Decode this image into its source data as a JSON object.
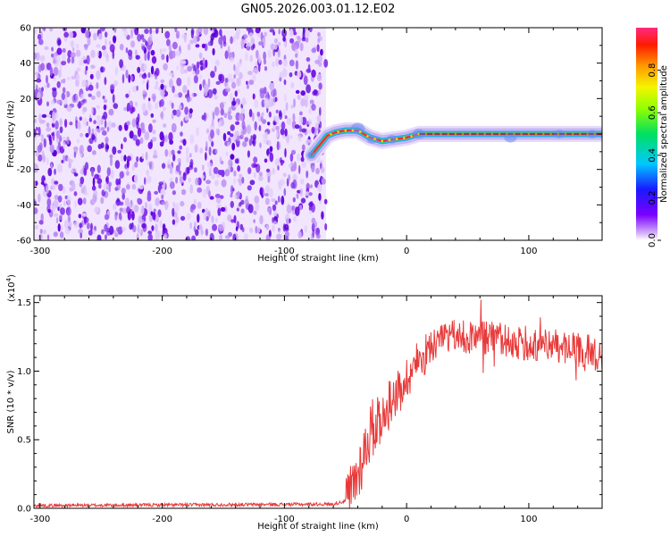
{
  "title": "GN05.2026.003.01.12.E02",
  "chart_data": [
    {
      "type": "heatmap",
      "name": "spectrogram",
      "xlabel": "Height of straight line (km)",
      "ylabel": "Frequency (Hz)",
      "xlim": [
        -305,
        160
      ],
      "ylim": [
        -60,
        60
      ],
      "xticks": [
        -300,
        -200,
        -100,
        0,
        100
      ],
      "yticks": [
        -60,
        -40,
        -20,
        0,
        20,
        40,
        60
      ],
      "noise_region_x": [
        -305,
        -66
      ],
      "trace": {
        "description_points": [
          {
            "x": -78,
            "freq": -12
          },
          {
            "x": -72,
            "freq": -7
          },
          {
            "x": -65,
            "freq": -1
          },
          {
            "x": -58,
            "freq": 1
          },
          {
            "x": -50,
            "freq": 2
          },
          {
            "x": -40,
            "freq": 2
          },
          {
            "x": -30,
            "freq": -2
          },
          {
            "x": -20,
            "freq": -4
          },
          {
            "x": -10,
            "freq": -3
          },
          {
            "x": 0,
            "freq": -2
          },
          {
            "x": 10,
            "freq": 0
          },
          {
            "x": 160,
            "freq": 0
          }
        ]
      },
      "colorbar": {
        "label": "Normalized spectral amplitude",
        "range": [
          0,
          1
        ],
        "ticks": [
          "0.0",
          "0.2",
          "0.4",
          "0.6",
          "0.8"
        ]
      }
    },
    {
      "type": "line",
      "name": "snr",
      "xlabel": "Height of straight line (km)",
      "ylabel": "SNR (10 * v/v)",
      "multiplier_label": "(x10",
      "multiplier_exp": "4",
      "xlim": [
        -305,
        160
      ],
      "ylim": [
        0,
        1.55
      ],
      "xticks": [
        -300,
        -200,
        -100,
        0,
        100
      ],
      "yticks": [
        0.0,
        0.5,
        1.0,
        1.5
      ],
      "series": [
        {
          "name": "SNR",
          "color": "#e83a3a",
          "envelope": [
            {
              "x": -305,
              "y": 0.02
            },
            {
              "x": -60,
              "y": 0.03
            },
            {
              "x": -48,
              "y": 0.06
            },
            {
              "x": -40,
              "y": 0.25
            },
            {
              "x": -30,
              "y": 0.55
            },
            {
              "x": -20,
              "y": 0.7
            },
            {
              "x": -10,
              "y": 0.82
            },
            {
              "x": 0,
              "y": 0.95
            },
            {
              "x": 10,
              "y": 1.08
            },
            {
              "x": 20,
              "y": 1.18
            },
            {
              "x": 40,
              "y": 1.25
            },
            {
              "x": 60,
              "y": 1.24
            },
            {
              "x": 80,
              "y": 1.22
            },
            {
              "x": 100,
              "y": 1.2
            },
            {
              "x": 120,
              "y": 1.18
            },
            {
              "x": 140,
              "y": 1.15
            },
            {
              "x": 160,
              "y": 1.12
            }
          ]
        }
      ]
    }
  ],
  "colors": {
    "noise_dark": "#6a00e6",
    "noise_light": "#c9a6f5",
    "trace_glow": "#c7d4f8",
    "line": "#e83a3a"
  }
}
